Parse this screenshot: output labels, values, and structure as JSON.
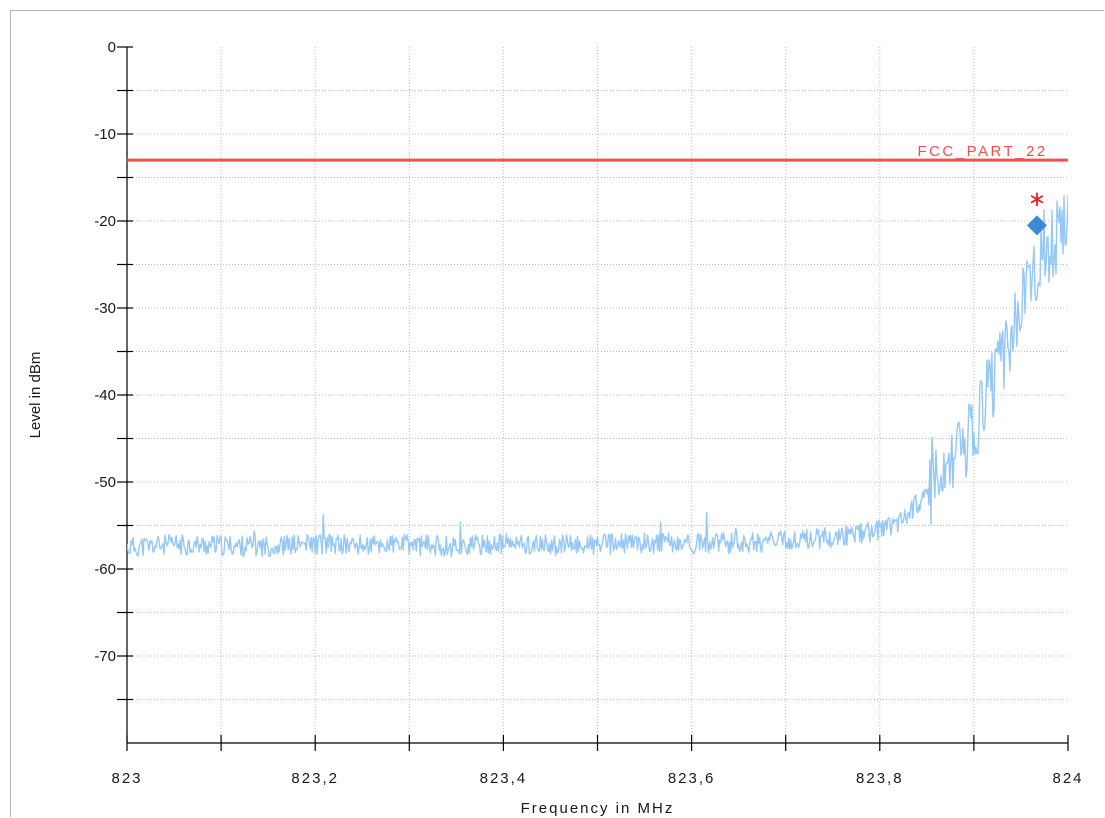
{
  "chart_data": {
    "type": "line",
    "title": "",
    "xlabel": "Frequency in MHz",
    "ylabel": "Level in dBm",
    "xlim": [
      823,
      824
    ],
    "ylim": [
      -80,
      0
    ],
    "x_ticks": [
      823,
      823.2,
      823.4,
      823.6,
      823.8,
      824
    ],
    "x_tick_labels": [
      "823",
      "823,2",
      "823,4",
      "823,6",
      "823,8",
      "824"
    ],
    "y_ticks": [
      0,
      -10,
      -20,
      -30,
      -40,
      -50,
      -60,
      -70
    ],
    "y_tick_labels": [
      "0",
      "-10",
      "-20",
      "-30",
      "-40",
      "-50",
      "-60",
      "-70"
    ],
    "grid": true,
    "limit_line": {
      "label": "FCC_PART_22",
      "value": -13,
      "color": "#f05050"
    },
    "series": [
      {
        "color": "#96c8f5",
        "x": [
          823,
          823.05,
          823.1,
          823.15,
          823.2,
          823.25,
          823.3,
          823.35,
          823.4,
          823.45,
          823.5,
          823.55,
          823.6,
          823.65,
          823.7,
          823.72,
          823.74,
          823.76,
          823.78,
          823.8,
          823.82,
          823.84,
          823.86,
          823.88,
          823.9,
          823.91,
          823.92,
          823.93,
          823.94,
          823.95,
          823.96,
          823.97,
          823.98,
          823.99,
          824
        ],
        "values": [
          -57.5,
          -57.2,
          -57.3,
          -57.4,
          -57.1,
          -57.3,
          -57.2,
          -57.4,
          -57.1,
          -57.3,
          -57.2,
          -57.0,
          -57.1,
          -57.0,
          -56.8,
          -56.6,
          -56.4,
          -56.2,
          -55.9,
          -55.5,
          -54.5,
          -52.5,
          -50.5,
          -48.0,
          -44.0,
          -41.0,
          -38.5,
          -36.0,
          -33.0,
          -30.0,
          -27.5,
          -25.0,
          -23.0,
          -21.5,
          -20.0
        ]
      }
    ],
    "markers": [
      {
        "type": "diamond",
        "x": 823.967,
        "y": -20.5,
        "color": "#3a8ad8"
      },
      {
        "type": "asterisk",
        "x": 823.967,
        "y": -17.5,
        "color": "#e02020"
      }
    ]
  }
}
